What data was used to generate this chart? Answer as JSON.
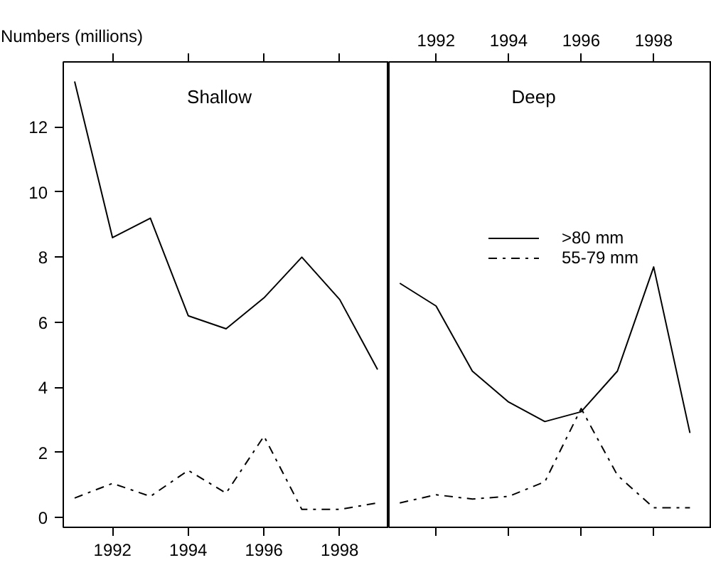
{
  "chart_data": [
    {
      "type": "line",
      "title": "Shallow",
      "ylabel": "Numbers (millions)",
      "x": [
        1991,
        1992,
        1993,
        1994,
        1995,
        1996,
        1997,
        1998,
        1999
      ],
      "xlim": [
        1990.7,
        1999.3
      ],
      "xticks": [
        1992,
        1994,
        1996,
        1998
      ],
      "ylim": [
        -0.3,
        14
      ],
      "yticks": [
        0,
        2,
        4,
        6,
        8,
        10,
        12
      ],
      "grid": false,
      "legend": false,
      "marker": "none",
      "series": [
        {
          "color": "#000000",
          "line_style": "solid",
          "values": [
            13.4,
            8.6,
            9.2,
            6.2,
            5.8,
            6.75,
            8.0,
            6.7,
            4.55
          ]
        },
        {
          "color": "#000000",
          "line_style": "dashed",
          "values": [
            0.6,
            1.05,
            0.65,
            1.45,
            0.75,
            2.5,
            0.25,
            0.25,
            0.45
          ]
        }
      ]
    },
    {
      "type": "line",
      "title": "Deep",
      "x": [
        1991,
        1992,
        1993,
        1994,
        1995,
        1996,
        1997,
        1998,
        1999
      ],
      "xlim": [
        1990.7,
        1999.6
      ],
      "xticks": [
        1992,
        1994,
        1996,
        1998
      ],
      "ylim": [
        -0.3,
        14
      ],
      "yticks": [
        0,
        2,
        4,
        6,
        8,
        10,
        12
      ],
      "tick_labels": "x",
      "grid": false,
      "legend": "right",
      "marker": "none",
      "series": [
        {
          "name": ">80 mm",
          "color": "#000000",
          "line_style": "solid",
          "values": [
            7.2,
            6.5,
            4.5,
            3.55,
            2.95,
            3.25,
            4.5,
            7.7,
            2.6
          ]
        },
        {
          "name": "55-79 mm",
          "color": "#000000",
          "line_style": "dashed",
          "values": [
            0.45,
            0.7,
            0.57,
            0.65,
            1.1,
            3.35,
            1.3,
            0.3,
            0.3
          ]
        }
      ]
    }
  ]
}
